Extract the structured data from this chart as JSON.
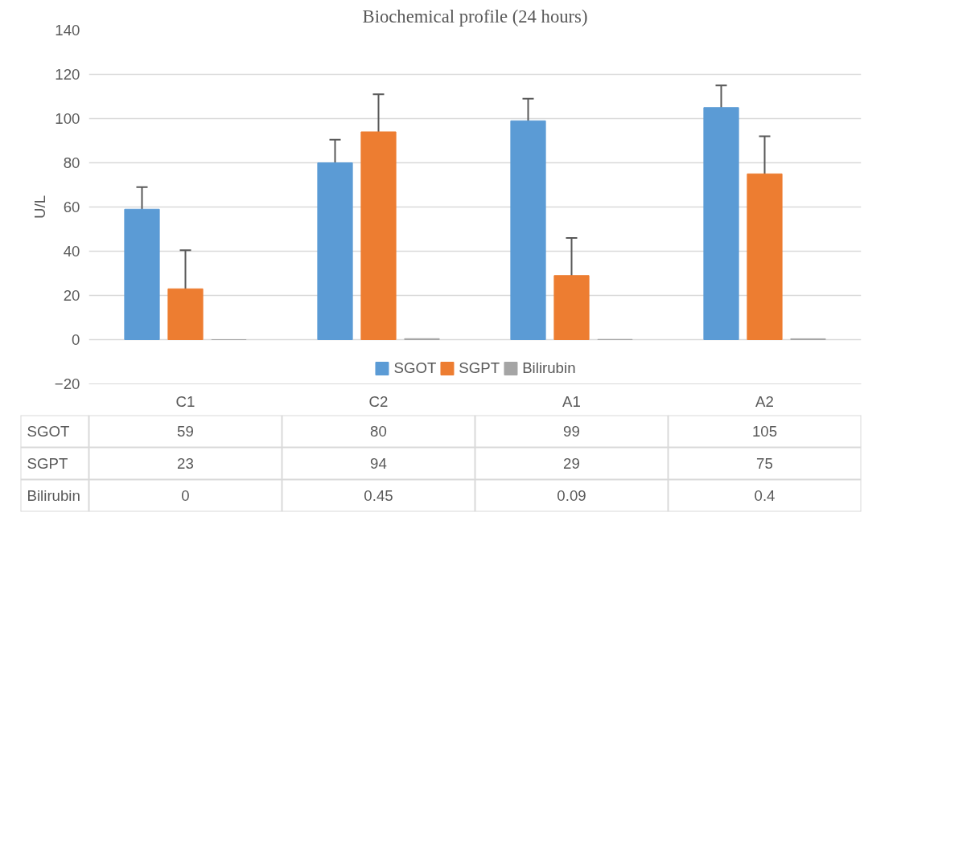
{
  "chart_data": {
    "type": "bar",
    "title": "Biochemical profile (24 hours)",
    "ylabel": "U/L",
    "categories": [
      "C1",
      "C2",
      "A1",
      "A2"
    ],
    "series": [
      {
        "name": "SGOT",
        "color": "#5b9bd5",
        "values": [
          59,
          80,
          99,
          105
        ],
        "errors": [
          10,
          10.5,
          10,
          10
        ]
      },
      {
        "name": "SGPT",
        "color": "#ed7d31",
        "values": [
          23,
          94,
          29,
          75
        ],
        "errors": [
          17.5,
          17,
          17,
          17
        ]
      },
      {
        "name": "Bilirubin",
        "color": "#a5a5a5",
        "values": [
          0,
          0.45,
          0.09,
          0.4
        ]
      }
    ],
    "ylim": [
      -20,
      140
    ],
    "yticks": [
      -20,
      0,
      20,
      40,
      60,
      80,
      100,
      120,
      140
    ],
    "grid": "y",
    "legend": "bottom",
    "data_labels": true
  }
}
